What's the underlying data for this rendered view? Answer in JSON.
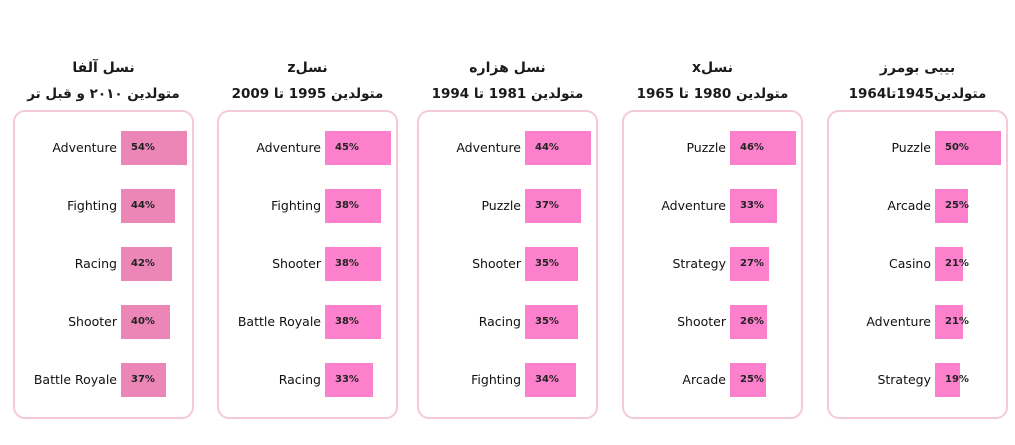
{
  "colors": {
    "border": "#f5c9dc",
    "bar_alpha": "#ec86b6",
    "bar_default": "#fd80cd"
  },
  "chart_data": [
    {
      "type": "bar",
      "title": "نسل آلفا",
      "subtitle": "متولدین ۲۰۱۰ و قبل تر",
      "categories": [
        "Adventure",
        "Fighting",
        "Racing",
        "Shooter",
        "Battle Royale"
      ],
      "values": [
        54,
        44,
        42,
        40,
        37
      ],
      "labels": [
        "54%",
        "44%",
        "42%",
        "40%",
        "37%"
      ],
      "color": "#ec86b6"
    },
    {
      "type": "bar",
      "title": "نسلz",
      "subtitle": "متولدین 1995 تا 2009",
      "categories": [
        "Adventure",
        "Fighting",
        "Shooter",
        "Battle Royale",
        "Racing"
      ],
      "values": [
        45,
        38,
        38,
        38,
        33
      ],
      "labels": [
        "45%",
        "38%",
        "38%",
        "38%",
        "33%"
      ],
      "color": "#fd80cd"
    },
    {
      "type": "bar",
      "title": "نسل هزاره",
      "subtitle": "متولدین 1981 تا 1994",
      "categories": [
        "Adventure",
        "Puzzle",
        "Shooter",
        "Racing",
        "Fighting"
      ],
      "values": [
        44,
        37,
        35,
        35,
        34
      ],
      "labels": [
        "44%",
        "37%",
        "35%",
        "35%",
        "34%"
      ],
      "color": "#fd80cd"
    },
    {
      "type": "bar",
      "title": "نسلx",
      "subtitle": "متولدین 1980 تا 1965",
      "categories": [
        "Puzzle",
        "Adventure",
        "Strategy",
        "Shooter",
        "Arcade"
      ],
      "values": [
        46,
        33,
        27,
        26,
        25
      ],
      "labels": [
        "46%",
        "33%",
        "27%",
        "26%",
        "25%"
      ],
      "color": "#fd80cd"
    },
    {
      "type": "bar",
      "title": "بیبی بومرز",
      "subtitle": "متولدین1945تا1964",
      "categories": [
        "Puzzle",
        "Arcade",
        "Casino",
        "Adventure",
        "Strategy"
      ],
      "values": [
        50,
        25,
        21,
        21,
        19
      ],
      "labels": [
        "50%",
        "25%",
        "21%",
        "21%",
        "19%"
      ],
      "color": "#fd80cd"
    }
  ]
}
